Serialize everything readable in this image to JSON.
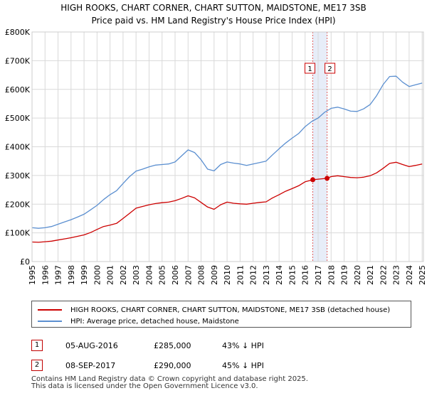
{
  "chart_data": {
    "type": "line",
    "title": "HIGH ROOKS, CHART CORNER, CHART SUTTON, MAIDSTONE, ME17 3SB",
    "subtitle": "Price paid vs. HM Land Registry's House Price Index (HPI)",
    "xlim": [
      1995,
      2025.1
    ],
    "ylim": [
      0,
      800000
    ],
    "y_ticks": [
      0,
      100000,
      200000,
      300000,
      400000,
      500000,
      600000,
      700000,
      800000
    ],
    "y_tick_labels": [
      "£0",
      "£100K",
      "£200K",
      "£300K",
      "£400K",
      "£500K",
      "£600K",
      "£700K",
      "£800K"
    ],
    "x_ticks": [
      1995,
      1996,
      1997,
      1998,
      1999,
      2000,
      2001,
      2002,
      2003,
      2004,
      2005,
      2006,
      2007,
      2008,
      2009,
      2010,
      2011,
      2012,
      2013,
      2014,
      2015,
      2016,
      2017,
      2018,
      2019,
      2020,
      2021,
      2022,
      2023,
      2024,
      2025
    ],
    "x_tick_labels": [
      "1995",
      "1996",
      "1997",
      "1998",
      "1999",
      "2000",
      "2001",
      "2002",
      "2003",
      "2004",
      "2005",
      "2006",
      "2007",
      "2008",
      "2009",
      "2010",
      "2011",
      "2012",
      "2013",
      "2014",
      "2015",
      "2016",
      "2017",
      "2018",
      "2019",
      "2020",
      "2021",
      "2022",
      "2023",
      "2024",
      "2025"
    ],
    "grid": true,
    "highlight_band": [
      2016.59,
      2017.69
    ],
    "series": [
      {
        "name": "HIGH ROOKS, CHART CORNER, CHART SUTTON, MAIDSTONE, ME17 3SB (detached house)",
        "color": "#cc0000",
        "x": [
          1995.0,
          1995.5,
          1996.0,
          1996.5,
          1997.0,
          1997.5,
          1998.0,
          1998.5,
          1999.0,
          1999.5,
          2000.0,
          2000.5,
          2001.0,
          2001.5,
          2002.0,
          2002.5,
          2003.0,
          2003.5,
          2004.0,
          2004.5,
          2005.0,
          2005.5,
          2006.0,
          2006.5,
          2007.0,
          2007.5,
          2008.0,
          2008.5,
          2009.0,
          2009.5,
          2010.0,
          2010.5,
          2011.0,
          2011.5,
          2012.0,
          2012.5,
          2013.0,
          2013.5,
          2014.0,
          2014.5,
          2015.0,
          2015.5,
          2016.0,
          2016.59,
          2017.0,
          2017.69,
          2018.0,
          2018.5,
          2019.0,
          2019.5,
          2020.0,
          2020.5,
          2021.0,
          2021.5,
          2022.0,
          2022.5,
          2023.0,
          2023.5,
          2024.0,
          2024.5,
          2025.0
        ],
        "values": [
          68000,
          67000,
          69000,
          71000,
          75000,
          79000,
          83000,
          88000,
          93000,
          101000,
          112000,
          122000,
          127000,
          133000,
          150000,
          168000,
          186000,
          192000,
          198000,
          202000,
          205000,
          207000,
          212000,
          220000,
          229000,
          222000,
          206000,
          190000,
          182000,
          198000,
          207000,
          203000,
          201000,
          200000,
          203000,
          206000,
          208000,
          222000,
          233000,
          245000,
          254000,
          264000,
          278000,
          285000,
          287000,
          290000,
          296000,
          299000,
          296000,
          293000,
          292000,
          294000,
          299000,
          309000,
          325000,
          342000,
          346000,
          338000,
          331000,
          335000,
          340000
        ]
      },
      {
        "name": "HPI: Average price, detached house, Maidstone",
        "color": "#5b8fd0",
        "x": [
          1995.0,
          1995.5,
          1996.0,
          1996.5,
          1997.0,
          1997.5,
          1998.0,
          1998.5,
          1999.0,
          1999.5,
          2000.0,
          2000.5,
          2001.0,
          2001.5,
          2002.0,
          2002.5,
          2003.0,
          2003.5,
          2004.0,
          2004.5,
          2005.0,
          2005.5,
          2006.0,
          2006.5,
          2007.0,
          2007.5,
          2008.0,
          2008.5,
          2009.0,
          2009.5,
          2010.0,
          2010.5,
          2011.0,
          2011.5,
          2012.0,
          2012.5,
          2013.0,
          2013.5,
          2014.0,
          2014.5,
          2015.0,
          2015.5,
          2016.0,
          2016.5,
          2017.0,
          2017.5,
          2018.0,
          2018.5,
          2019.0,
          2019.5,
          2020.0,
          2020.5,
          2021.0,
          2021.5,
          2022.0,
          2022.5,
          2023.0,
          2023.5,
          2024.0,
          2024.5,
          2025.0
        ],
        "values": [
          118000,
          116000,
          118000,
          122000,
          130000,
          138000,
          146000,
          155000,
          165000,
          180000,
          196000,
          216000,
          233000,
          247000,
          272000,
          296000,
          315000,
          322000,
          330000,
          336000,
          338000,
          340000,
          347000,
          368000,
          389000,
          380000,
          355000,
          322000,
          316000,
          338000,
          347000,
          343000,
          340000,
          335000,
          340000,
          345000,
          350000,
          372000,
          393000,
          413000,
          430000,
          446000,
          470000,
          488000,
          500000,
          520000,
          534000,
          538000,
          532000,
          524000,
          523000,
          532000,
          547000,
          578000,
          617000,
          645000,
          646000,
          625000,
          610000,
          616000,
          622000
        ]
      }
    ],
    "markers": [
      {
        "label": "1",
        "x": 2016.59,
        "y": 285000
      },
      {
        "label": "2",
        "x": 2017.69,
        "y": 290000
      }
    ]
  },
  "legend": {
    "items": [
      {
        "label": "HIGH ROOKS, CHART CORNER, CHART SUTTON, MAIDSTONE, ME17 3SB (detached house)",
        "color": "#cc0000"
      },
      {
        "label": "HPI: Average price, detached house, Maidstone",
        "color": "#5b8fd0"
      }
    ]
  },
  "sales": [
    {
      "num": "1",
      "date": "05-AUG-2016",
      "price": "£285,000",
      "hpi": "43% ↓ HPI"
    },
    {
      "num": "2",
      "date": "08-SEP-2017",
      "price": "£290,000",
      "hpi": "45% ↓ HPI"
    }
  ],
  "footer": {
    "line1": "Contains HM Land Registry data © Crown copyright and database right 2025.",
    "line2": "This data is licensed under the Open Government Licence v3.0."
  }
}
